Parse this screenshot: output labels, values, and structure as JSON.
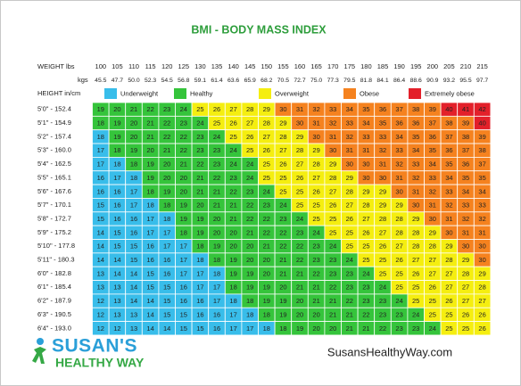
{
  "title": "BMI - BODY MASS INDEX",
  "header": {
    "weight_label": "WEIGHT lbs",
    "kg_label": "kgs",
    "height_label": "HEIGHT in/cm",
    "lbs": [
      "100",
      "105",
      "110",
      "115",
      "120",
      "125",
      "130",
      "135",
      "140",
      "145",
      "150",
      "155",
      "160",
      "165",
      "170",
      "175",
      "180",
      "185",
      "190",
      "195",
      "200",
      "205",
      "210",
      "215"
    ],
    "kgs": [
      "45.5",
      "47.7",
      "50.0",
      "52.3",
      "54.5",
      "56.8",
      "59.1",
      "61.4",
      "63.6",
      "65.9",
      "68.2",
      "70.5",
      "72.7",
      "75.0",
      "77.3",
      "79.5",
      "81.8",
      "84.1",
      "86.4",
      "88.6",
      "90.9",
      "93.2",
      "95.5",
      "97.7"
    ]
  },
  "legend": [
    {
      "name": "Underweight",
      "color": "#38bdea"
    },
    {
      "name": "Healthy",
      "color": "#35c43b"
    },
    {
      "name": "Overweight",
      "color": "#f5ee10"
    },
    {
      "name": "Obese",
      "color": "#f5821f"
    },
    {
      "name": "Extremely obese",
      "color": "#e3202a"
    }
  ],
  "rows": [
    {
      "label": "5'0\" - 152.4",
      "values": [
        "19",
        "20",
        "21",
        "22",
        "23",
        "24",
        "25",
        "26",
        "27",
        "28",
        "29",
        "30",
        "31",
        "32",
        "33",
        "34",
        "35",
        "36",
        "37",
        "38",
        "39",
        "40",
        "41",
        "42"
      ],
      "colors": [
        "#35c43b",
        "#35c43b",
        "#35c43b",
        "#35c43b",
        "#35c43b",
        "#35c43b",
        "#f5ee10",
        "#f5ee10",
        "#f5ee10",
        "#f5ee10",
        "#f5ee10",
        "#f5821f",
        "#f5821f",
        "#f5821f",
        "#f5821f",
        "#f5821f",
        "#f5821f",
        "#f5821f",
        "#f5821f",
        "#f5821f",
        "#f5821f",
        "#e3202a",
        "#e3202a",
        "#e3202a"
      ]
    },
    {
      "label": "5'1\" - 154.9",
      "values": [
        "18",
        "19",
        "20",
        "21",
        "22",
        "23",
        "24",
        "25",
        "26",
        "27",
        "28",
        "29",
        "30",
        "31",
        "32",
        "33",
        "34",
        "35",
        "36",
        "36",
        "37",
        "38",
        "39",
        "40"
      ],
      "colors": [
        "#35c43b",
        "#35c43b",
        "#35c43b",
        "#35c43b",
        "#35c43b",
        "#35c43b",
        "#35c43b",
        "#f5ee10",
        "#f5ee10",
        "#f5ee10",
        "#f5ee10",
        "#f5ee10",
        "#f5821f",
        "#f5821f",
        "#f5821f",
        "#f5821f",
        "#f5821f",
        "#f5821f",
        "#f5821f",
        "#f5821f",
        "#f5821f",
        "#f5821f",
        "#f5821f",
        "#e3202a"
      ]
    },
    {
      "label": "5'2\" - 157.4",
      "values": [
        "18",
        "19",
        "20",
        "21",
        "22",
        "22",
        "23",
        "24",
        "25",
        "26",
        "27",
        "28",
        "29",
        "30",
        "31",
        "32",
        "33",
        "33",
        "34",
        "35",
        "36",
        "37",
        "38",
        "39"
      ],
      "colors": [
        "#38bdea",
        "#35c43b",
        "#35c43b",
        "#35c43b",
        "#35c43b",
        "#35c43b",
        "#35c43b",
        "#35c43b",
        "#f5ee10",
        "#f5ee10",
        "#f5ee10",
        "#f5ee10",
        "#f5ee10",
        "#f5821f",
        "#f5821f",
        "#f5821f",
        "#f5821f",
        "#f5821f",
        "#f5821f",
        "#f5821f",
        "#f5821f",
        "#f5821f",
        "#f5821f",
        "#f5821f"
      ]
    },
    {
      "label": "5'3\" - 160.0",
      "values": [
        "17",
        "18",
        "19",
        "20",
        "21",
        "22",
        "23",
        "23",
        "24",
        "25",
        "26",
        "27",
        "28",
        "29",
        "30",
        "31",
        "31",
        "32",
        "33",
        "34",
        "35",
        "36",
        "37",
        "38"
      ],
      "colors": [
        "#38bdea",
        "#35c43b",
        "#35c43b",
        "#35c43b",
        "#35c43b",
        "#35c43b",
        "#35c43b",
        "#35c43b",
        "#35c43b",
        "#f5ee10",
        "#f5ee10",
        "#f5ee10",
        "#f5ee10",
        "#f5ee10",
        "#f5821f",
        "#f5821f",
        "#f5821f",
        "#f5821f",
        "#f5821f",
        "#f5821f",
        "#f5821f",
        "#f5821f",
        "#f5821f",
        "#f5821f"
      ]
    },
    {
      "label": "5'4\" - 162.5",
      "values": [
        "17",
        "18",
        "18",
        "19",
        "20",
        "21",
        "22",
        "23",
        "24",
        "24",
        "25",
        "26",
        "27",
        "28",
        "29",
        "30",
        "30",
        "31",
        "32",
        "33",
        "34",
        "35",
        "36",
        "37"
      ],
      "colors": [
        "#38bdea",
        "#38bdea",
        "#35c43b",
        "#35c43b",
        "#35c43b",
        "#35c43b",
        "#35c43b",
        "#35c43b",
        "#35c43b",
        "#35c43b",
        "#f5ee10",
        "#f5ee10",
        "#f5ee10",
        "#f5ee10",
        "#f5ee10",
        "#f5821f",
        "#f5821f",
        "#f5821f",
        "#f5821f",
        "#f5821f",
        "#f5821f",
        "#f5821f",
        "#f5821f",
        "#f5821f"
      ]
    },
    {
      "label": "5'5\" - 165.1",
      "values": [
        "16",
        "17",
        "18",
        "19",
        "20",
        "20",
        "21",
        "22",
        "23",
        "24",
        "25",
        "25",
        "26",
        "27",
        "28",
        "29",
        "30",
        "30",
        "31",
        "32",
        "33",
        "34",
        "35",
        "35"
      ],
      "colors": [
        "#38bdea",
        "#38bdea",
        "#38bdea",
        "#35c43b",
        "#35c43b",
        "#35c43b",
        "#35c43b",
        "#35c43b",
        "#35c43b",
        "#35c43b",
        "#f5ee10",
        "#f5ee10",
        "#f5ee10",
        "#f5ee10",
        "#f5ee10",
        "#f5ee10",
        "#f5821f",
        "#f5821f",
        "#f5821f",
        "#f5821f",
        "#f5821f",
        "#f5821f",
        "#f5821f",
        "#f5821f"
      ]
    },
    {
      "label": "5'6\" - 167.6",
      "values": [
        "16",
        "16",
        "17",
        "18",
        "19",
        "20",
        "21",
        "21",
        "22",
        "23",
        "24",
        "25",
        "25",
        "26",
        "27",
        "28",
        "29",
        "29",
        "30",
        "31",
        "32",
        "33",
        "34",
        "34"
      ],
      "colors": [
        "#38bdea",
        "#38bdea",
        "#38bdea",
        "#35c43b",
        "#35c43b",
        "#35c43b",
        "#35c43b",
        "#35c43b",
        "#35c43b",
        "#35c43b",
        "#35c43b",
        "#f5ee10",
        "#f5ee10",
        "#f5ee10",
        "#f5ee10",
        "#f5ee10",
        "#f5ee10",
        "#f5ee10",
        "#f5821f",
        "#f5821f",
        "#f5821f",
        "#f5821f",
        "#f5821f",
        "#f5821f"
      ]
    },
    {
      "label": "5'7\" - 170.1",
      "values": [
        "15",
        "16",
        "17",
        "18",
        "18",
        "19",
        "20",
        "21",
        "21",
        "22",
        "23",
        "24",
        "25",
        "25",
        "26",
        "27",
        "28",
        "29",
        "29",
        "30",
        "31",
        "32",
        "33",
        "33"
      ],
      "colors": [
        "#38bdea",
        "#38bdea",
        "#38bdea",
        "#38bdea",
        "#35c43b",
        "#35c43b",
        "#35c43b",
        "#35c43b",
        "#35c43b",
        "#35c43b",
        "#35c43b",
        "#35c43b",
        "#f5ee10",
        "#f5ee10",
        "#f5ee10",
        "#f5ee10",
        "#f5ee10",
        "#f5ee10",
        "#f5ee10",
        "#f5821f",
        "#f5821f",
        "#f5821f",
        "#f5821f",
        "#f5821f"
      ]
    },
    {
      "label": "5'8\" - 172.7",
      "values": [
        "15",
        "16",
        "16",
        "17",
        "18",
        "19",
        "19",
        "20",
        "21",
        "22",
        "22",
        "23",
        "24",
        "25",
        "25",
        "26",
        "27",
        "28",
        "28",
        "29",
        "30",
        "31",
        "32",
        "32"
      ],
      "colors": [
        "#38bdea",
        "#38bdea",
        "#38bdea",
        "#38bdea",
        "#38bdea",
        "#35c43b",
        "#35c43b",
        "#35c43b",
        "#35c43b",
        "#35c43b",
        "#35c43b",
        "#35c43b",
        "#35c43b",
        "#f5ee10",
        "#f5ee10",
        "#f5ee10",
        "#f5ee10",
        "#f5ee10",
        "#f5ee10",
        "#f5ee10",
        "#f5821f",
        "#f5821f",
        "#f5821f",
        "#f5821f"
      ]
    },
    {
      "label": "5'9\" - 175.2",
      "values": [
        "14",
        "15",
        "16",
        "17",
        "17",
        "18",
        "19",
        "20",
        "20",
        "21",
        "22",
        "22",
        "23",
        "24",
        "25",
        "25",
        "26",
        "27",
        "28",
        "28",
        "29",
        "30",
        "31",
        "31"
      ],
      "colors": [
        "#38bdea",
        "#38bdea",
        "#38bdea",
        "#38bdea",
        "#38bdea",
        "#35c43b",
        "#35c43b",
        "#35c43b",
        "#35c43b",
        "#35c43b",
        "#35c43b",
        "#35c43b",
        "#35c43b",
        "#35c43b",
        "#f5ee10",
        "#f5ee10",
        "#f5ee10",
        "#f5ee10",
        "#f5ee10",
        "#f5ee10",
        "#f5ee10",
        "#f5821f",
        "#f5821f",
        "#f5821f"
      ]
    },
    {
      "label": "5'10\" - 177.8",
      "values": [
        "14",
        "15",
        "15",
        "16",
        "17",
        "17",
        "18",
        "19",
        "20",
        "20",
        "21",
        "22",
        "22",
        "23",
        "24",
        "25",
        "25",
        "26",
        "27",
        "28",
        "28",
        "29",
        "30",
        "30"
      ],
      "colors": [
        "#38bdea",
        "#38bdea",
        "#38bdea",
        "#38bdea",
        "#38bdea",
        "#38bdea",
        "#35c43b",
        "#35c43b",
        "#35c43b",
        "#35c43b",
        "#35c43b",
        "#35c43b",
        "#35c43b",
        "#35c43b",
        "#35c43b",
        "#f5ee10",
        "#f5ee10",
        "#f5ee10",
        "#f5ee10",
        "#f5ee10",
        "#f5ee10",
        "#f5ee10",
        "#f5821f",
        "#f5821f"
      ]
    },
    {
      "label": "5'11\" - 180.3",
      "values": [
        "14",
        "14",
        "15",
        "16",
        "16",
        "17",
        "18",
        "18",
        "19",
        "20",
        "20",
        "21",
        "22",
        "23",
        "23",
        "24",
        "25",
        "25",
        "26",
        "27",
        "27",
        "28",
        "29",
        "30"
      ],
      "colors": [
        "#38bdea",
        "#38bdea",
        "#38bdea",
        "#38bdea",
        "#38bdea",
        "#38bdea",
        "#38bdea",
        "#35c43b",
        "#35c43b",
        "#35c43b",
        "#35c43b",
        "#35c43b",
        "#35c43b",
        "#35c43b",
        "#35c43b",
        "#35c43b",
        "#f5ee10",
        "#f5ee10",
        "#f5ee10",
        "#f5ee10",
        "#f5ee10",
        "#f5ee10",
        "#f5ee10",
        "#f5821f"
      ]
    },
    {
      "label": "6'0\" - 182.8",
      "values": [
        "13",
        "14",
        "14",
        "15",
        "16",
        "17",
        "17",
        "18",
        "19",
        "19",
        "20",
        "21",
        "21",
        "22",
        "23",
        "23",
        "24",
        "25",
        "25",
        "26",
        "27",
        "27",
        "28",
        "29"
      ],
      "colors": [
        "#38bdea",
        "#38bdea",
        "#38bdea",
        "#38bdea",
        "#38bdea",
        "#38bdea",
        "#38bdea",
        "#38bdea",
        "#35c43b",
        "#35c43b",
        "#35c43b",
        "#35c43b",
        "#35c43b",
        "#35c43b",
        "#35c43b",
        "#35c43b",
        "#35c43b",
        "#f5ee10",
        "#f5ee10",
        "#f5ee10",
        "#f5ee10",
        "#f5ee10",
        "#f5ee10",
        "#f5ee10"
      ]
    },
    {
      "label": "6'1\" - 185.4",
      "values": [
        "13",
        "13",
        "14",
        "15",
        "15",
        "16",
        "17",
        "17",
        "18",
        "19",
        "19",
        "20",
        "21",
        "21",
        "22",
        "23",
        "23",
        "24",
        "25",
        "25",
        "26",
        "27",
        "27",
        "28"
      ],
      "colors": [
        "#38bdea",
        "#38bdea",
        "#38bdea",
        "#38bdea",
        "#38bdea",
        "#38bdea",
        "#38bdea",
        "#38bdea",
        "#35c43b",
        "#35c43b",
        "#35c43b",
        "#35c43b",
        "#35c43b",
        "#35c43b",
        "#35c43b",
        "#35c43b",
        "#35c43b",
        "#35c43b",
        "#f5ee10",
        "#f5ee10",
        "#f5ee10",
        "#f5ee10",
        "#f5ee10",
        "#f5ee10"
      ]
    },
    {
      "label": "6'2\" - 187.9",
      "values": [
        "12",
        "13",
        "14",
        "14",
        "15",
        "16",
        "16",
        "17",
        "18",
        "18",
        "19",
        "19",
        "20",
        "21",
        "21",
        "22",
        "23",
        "23",
        "24",
        "25",
        "25",
        "26",
        "27",
        "27"
      ],
      "colors": [
        "#38bdea",
        "#38bdea",
        "#38bdea",
        "#38bdea",
        "#38bdea",
        "#38bdea",
        "#38bdea",
        "#38bdea",
        "#38bdea",
        "#35c43b",
        "#35c43b",
        "#35c43b",
        "#35c43b",
        "#35c43b",
        "#35c43b",
        "#35c43b",
        "#35c43b",
        "#35c43b",
        "#35c43b",
        "#f5ee10",
        "#f5ee10",
        "#f5ee10",
        "#f5ee10",
        "#f5ee10"
      ]
    },
    {
      "label": "6'3\" - 190.5",
      "values": [
        "12",
        "13",
        "13",
        "14",
        "15",
        "15",
        "16",
        "16",
        "17",
        "18",
        "18",
        "19",
        "20",
        "20",
        "21",
        "21",
        "22",
        "23",
        "23",
        "24",
        "25",
        "25",
        "26",
        "26"
      ],
      "colors": [
        "#38bdea",
        "#38bdea",
        "#38bdea",
        "#38bdea",
        "#38bdea",
        "#38bdea",
        "#38bdea",
        "#38bdea",
        "#38bdea",
        "#38bdea",
        "#35c43b",
        "#35c43b",
        "#35c43b",
        "#35c43b",
        "#35c43b",
        "#35c43b",
        "#35c43b",
        "#35c43b",
        "#35c43b",
        "#35c43b",
        "#f5ee10",
        "#f5ee10",
        "#f5ee10",
        "#f5ee10"
      ]
    },
    {
      "label": "6'4\" - 193.0",
      "values": [
        "12",
        "12",
        "13",
        "14",
        "14",
        "15",
        "15",
        "16",
        "17",
        "17",
        "18",
        "18",
        "19",
        "20",
        "20",
        "21",
        "21",
        "22",
        "23",
        "23",
        "24",
        "25",
        "25",
        "26"
      ],
      "colors": [
        "#38bdea",
        "#38bdea",
        "#38bdea",
        "#38bdea",
        "#38bdea",
        "#38bdea",
        "#38bdea",
        "#38bdea",
        "#38bdea",
        "#38bdea",
        "#38bdea",
        "#35c43b",
        "#35c43b",
        "#35c43b",
        "#35c43b",
        "#35c43b",
        "#35c43b",
        "#35c43b",
        "#35c43b",
        "#35c43b",
        "#35c43b",
        "#f5ee10",
        "#f5ee10",
        "#f5ee10"
      ]
    }
  ],
  "logo": {
    "line1": "SUSAN'S",
    "line2": "HEALTHY WAY"
  },
  "website": "SusansHealthyWay.com"
}
